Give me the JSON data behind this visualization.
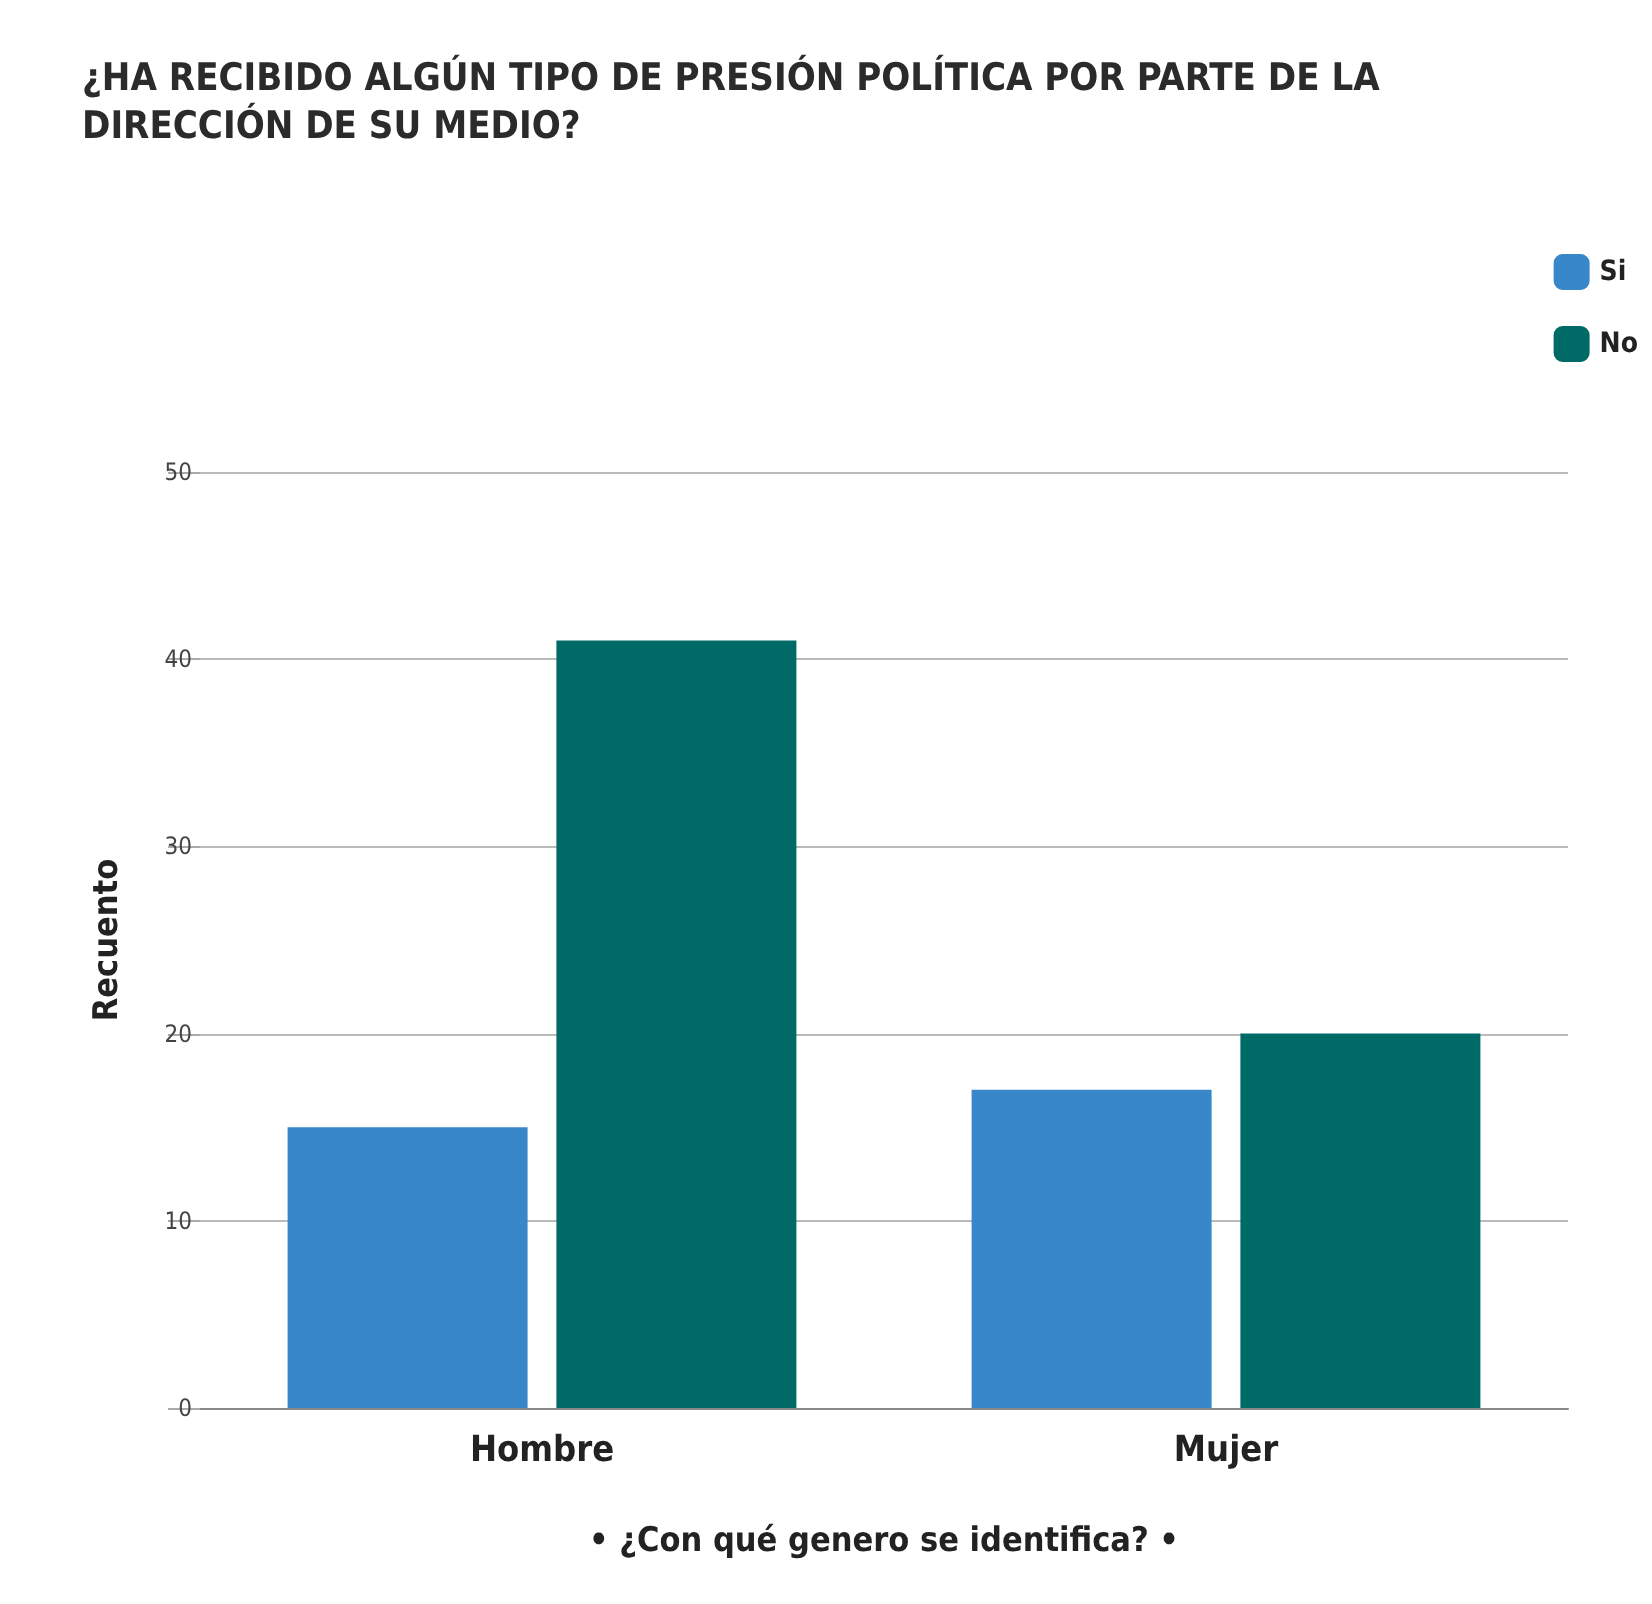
{
  "chart_data": {
    "type": "bar",
    "title": "¿HA RECIBIDO ALGÚN TIPO DE PRESIÓN POLÍTICA POR PARTE DE LA DIRECCIÓN DE SU MEDIO?",
    "xlabel": "• ¿Con qué genero se identifica? •",
    "ylabel": "Recuento",
    "categories": [
      "Hombre",
      "Mujer"
    ],
    "series": [
      {
        "name": "Si",
        "color": "#3887c9",
        "values": [
          15,
          17
        ]
      },
      {
        "name": "No",
        "color": "#006a66",
        "values": [
          41,
          20
        ]
      }
    ],
    "ylim": [
      0,
      50
    ],
    "yticks": [
      0,
      10,
      20,
      30,
      40,
      50
    ],
    "grid": "y",
    "legend": "top right"
  }
}
